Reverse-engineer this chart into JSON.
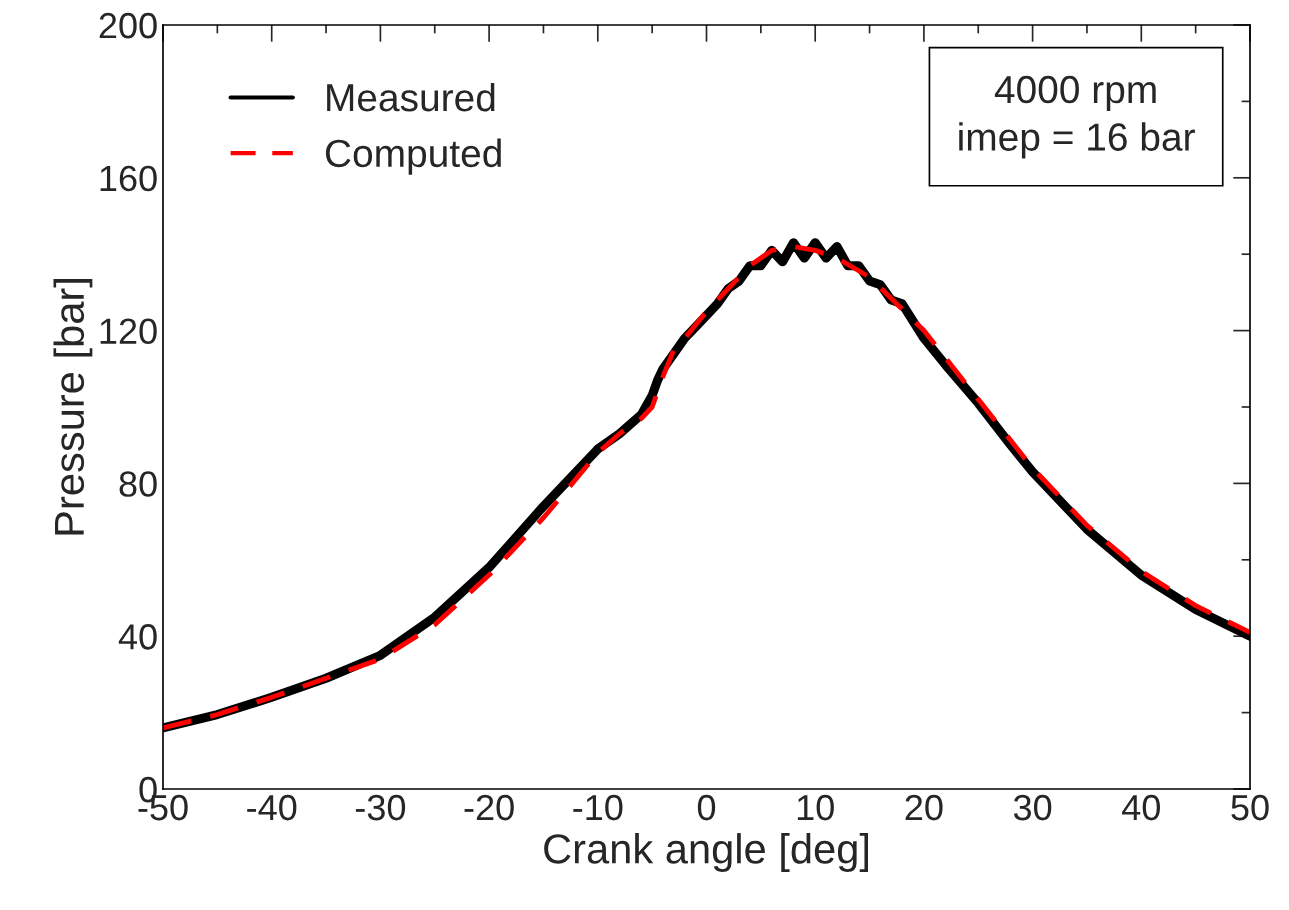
{
  "chart_data": {
    "type": "line",
    "xlabel": "Crank angle [deg]",
    "ylabel": "Pressure [bar]",
    "xlim": [
      -50,
      50
    ],
    "ylim": [
      0,
      200
    ],
    "xticks": [
      -50,
      -40,
      -30,
      -20,
      -10,
      0,
      10,
      20,
      30,
      40,
      50
    ],
    "yticks": [
      0,
      40,
      80,
      120,
      160,
      200
    ],
    "legend": "top left",
    "annotations": [
      "4000 rpm\nimep = 16 bar"
    ],
    "series": [
      {
        "name": "Measured",
        "color": "#000000",
        "line_style": "solid",
        "x": [
          -50,
          -45,
          -40,
          -35,
          -30,
          -25,
          -20,
          -15,
          -10,
          -8,
          -6,
          -5,
          -4.5,
          -4,
          -3,
          -2,
          -1,
          0,
          1,
          2,
          3,
          4,
          5,
          6,
          7,
          8,
          9,
          10,
          11,
          12,
          13,
          14,
          15,
          16,
          17,
          18,
          20,
          22,
          25,
          28,
          30,
          35,
          40,
          45,
          50
        ],
        "values": [
          16,
          19.5,
          24,
          29,
          35,
          45,
          58,
          74,
          89,
          93,
          98,
          103,
          107,
          110,
          114,
          118,
          121,
          124,
          127,
          131,
          133,
          137,
          137,
          141,
          138,
          143,
          139,
          143,
          139,
          142,
          137,
          137,
          133,
          132,
          128,
          127,
          118,
          111,
          101,
          90,
          83,
          68,
          56,
          47,
          40
        ]
      },
      {
        "name": "Computed",
        "color": "#ff0000",
        "line_style": "dashed",
        "x": [
          -50,
          -45,
          -40,
          -35,
          -30,
          -25,
          -20,
          -15,
          -10,
          -8,
          -6,
          -5,
          -4,
          -3,
          -2,
          0,
          2,
          4,
          6,
          8,
          10,
          12,
          15,
          20,
          25,
          30,
          35,
          40,
          45,
          50
        ],
        "values": [
          16,
          19.5,
          24,
          29,
          34,
          43,
          56,
          71,
          88,
          93,
          97,
          100,
          108,
          115,
          118,
          125,
          131,
          137,
          141,
          142,
          141,
          139,
          134,
          120,
          102,
          84,
          69,
          57,
          48,
          41
        ]
      }
    ]
  }
}
